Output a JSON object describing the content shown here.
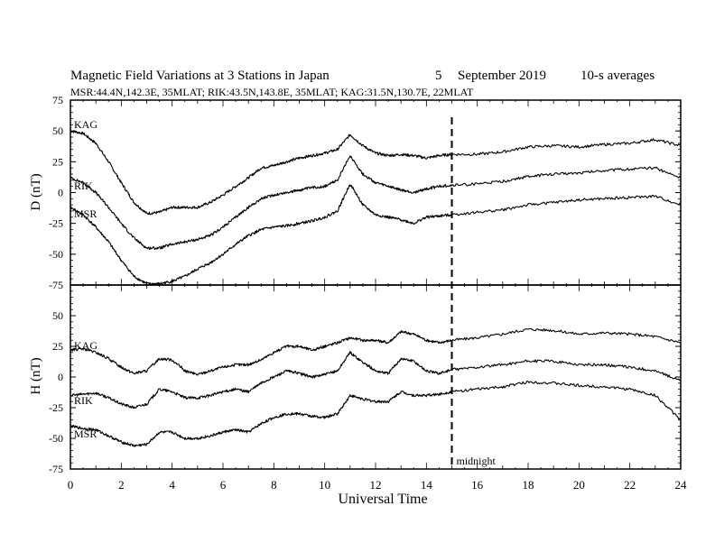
{
  "header": {
    "title": "Magnetic Field Variations at 3 Stations in Japan",
    "day": "5",
    "month": "September",
    "year": "2019",
    "averaging": "10-s averages",
    "stations": "MSR:44.4N,142.3E, 35MLAT;  RIK:43.5N,143.8E, 35MLAT;  KAG:31.5N,130.7E, 22MLAT"
  },
  "chart_data": [
    {
      "type": "line",
      "panel": "top",
      "ylabel": "D (nT)",
      "ylim": [
        -75,
        75
      ],
      "yticks": [
        "75",
        "50",
        "25",
        "0",
        "-25",
        "-50",
        "-75"
      ],
      "xlim": [
        0,
        24
      ],
      "series": [
        {
          "name": "KAG",
          "x": [
            0,
            0.5,
            1,
            1.5,
            2,
            2.5,
            3,
            3.5,
            4,
            4.5,
            5,
            5.5,
            6,
            6.5,
            7,
            7.5,
            8,
            8.5,
            9,
            9.5,
            10,
            10.5,
            11,
            11.5,
            12,
            12.5,
            13,
            13.5,
            14,
            14.5,
            15,
            16,
            17,
            18,
            19,
            20,
            21,
            22,
            23,
            24
          ],
          "y": [
            50,
            48,
            40,
            25,
            8,
            -8,
            -17,
            -16,
            -12,
            -12,
            -12,
            -8,
            -2,
            5,
            12,
            20,
            22,
            25,
            28,
            30,
            32,
            35,
            47,
            38,
            32,
            30,
            31,
            30,
            28,
            30,
            31,
            31,
            33,
            37,
            38,
            37,
            39,
            40,
            43,
            38
          ]
        },
        {
          "name": "RIK",
          "x": [
            0,
            0.5,
            1,
            1.5,
            2,
            2.5,
            3,
            3.5,
            4,
            4.5,
            5,
            5.5,
            6,
            6.5,
            7,
            7.5,
            8,
            8.5,
            9,
            9.5,
            10,
            10.5,
            11,
            11.5,
            12,
            12.5,
            13,
            13.5,
            14,
            14.5,
            15,
            16,
            17,
            18,
            19,
            20,
            21,
            22,
            23,
            24
          ],
          "y": [
            12,
            8,
            0,
            -12,
            -25,
            -37,
            -45,
            -45,
            -42,
            -40,
            -38,
            -35,
            -28,
            -20,
            -12,
            -5,
            -2,
            0,
            2,
            4,
            5,
            10,
            30,
            15,
            8,
            5,
            2,
            0,
            3,
            5,
            6,
            7,
            9,
            13,
            15,
            16,
            18,
            19,
            20,
            12
          ]
        },
        {
          "name": "MSR",
          "x": [
            0,
            0.5,
            1,
            1.5,
            2,
            2.5,
            3,
            3.5,
            4,
            4.5,
            5,
            5.5,
            6,
            6.5,
            7,
            7.5,
            8,
            8.5,
            9,
            9.5,
            10,
            10.5,
            11,
            11.5,
            12,
            12.5,
            13,
            13.5,
            14,
            14.5,
            15,
            16,
            17,
            18,
            19,
            20,
            21,
            22,
            23,
            24
          ],
          "y": [
            -12,
            -18,
            -28,
            -40,
            -55,
            -68,
            -74,
            -74,
            -72,
            -68,
            -62,
            -57,
            -50,
            -42,
            -35,
            -30,
            -28,
            -27,
            -25,
            -23,
            -20,
            -15,
            7,
            -10,
            -18,
            -20,
            -22,
            -25,
            -20,
            -19,
            -18,
            -16,
            -14,
            -10,
            -8,
            -6,
            -5,
            -4,
            -3,
            -10
          ]
        }
      ]
    },
    {
      "type": "line",
      "panel": "bottom",
      "ylabel": "H (nT)",
      "ylim": [
        -75,
        75
      ],
      "yticks": [
        "50",
        "25",
        "0",
        "-25",
        "-50",
        "-75"
      ],
      "xlabel": "Universal Time",
      "xlim": [
        0,
        24
      ],
      "xticks": [
        "0",
        "2",
        "4",
        "6",
        "8",
        "10",
        "12",
        "14",
        "16",
        "18",
        "20",
        "22",
        "24"
      ],
      "annotation": {
        "x": 15,
        "label": "midnight"
      },
      "series": [
        {
          "name": "KAG",
          "x": [
            0,
            0.5,
            1,
            1.5,
            2,
            2.5,
            3,
            3.5,
            4,
            4.5,
            5,
            5.5,
            6,
            6.5,
            7,
            7.5,
            8,
            8.5,
            9,
            9.5,
            10,
            10.5,
            11,
            11.5,
            12,
            12.5,
            13,
            13.5,
            14,
            14.5,
            15,
            16,
            17,
            18,
            19,
            20,
            21,
            22,
            23,
            24
          ],
          "y": [
            22,
            23,
            20,
            15,
            8,
            3,
            5,
            15,
            14,
            5,
            2,
            5,
            8,
            10,
            10,
            14,
            20,
            25,
            25,
            22,
            25,
            28,
            32,
            30,
            30,
            28,
            37,
            35,
            30,
            28,
            30,
            32,
            35,
            39,
            38,
            35,
            36,
            35,
            33,
            28
          ]
        },
        {
          "name": "RIK",
          "x": [
            0,
            0.5,
            1,
            1.5,
            2,
            2.5,
            3,
            3.5,
            4,
            4.5,
            5,
            5.5,
            6,
            6.5,
            7,
            7.5,
            8,
            8.5,
            9,
            9.5,
            10,
            10.5,
            11,
            11.5,
            12,
            12.5,
            13,
            13.5,
            14,
            14.5,
            15,
            16,
            17,
            18,
            19,
            20,
            21,
            22,
            23,
            24
          ],
          "y": [
            -15,
            -14,
            -13,
            -17,
            -22,
            -25,
            -22,
            -10,
            -12,
            -17,
            -17,
            -15,
            -12,
            -10,
            -12,
            -5,
            0,
            5,
            3,
            0,
            2,
            5,
            20,
            12,
            5,
            3,
            15,
            13,
            5,
            3,
            6,
            8,
            10,
            13,
            13,
            10,
            10,
            8,
            5,
            -3
          ]
        },
        {
          "name": "MSR",
          "x": [
            0,
            0.5,
            1,
            1.5,
            2,
            2.5,
            3,
            3.5,
            4,
            4.5,
            5,
            5.5,
            6,
            6.5,
            7,
            7.5,
            8,
            8.5,
            9,
            9.5,
            10,
            10.5,
            11,
            11.5,
            12,
            12.5,
            13,
            13.5,
            14,
            14.5,
            15,
            16,
            17,
            18,
            19,
            20,
            21,
            22,
            23,
            24
          ],
          "y": [
            -40,
            -42,
            -43,
            -48,
            -53,
            -56,
            -55,
            -45,
            -45,
            -50,
            -50,
            -48,
            -45,
            -43,
            -45,
            -38,
            -33,
            -30,
            -30,
            -32,
            -33,
            -30,
            -15,
            -18,
            -20,
            -20,
            -12,
            -15,
            -15,
            -14,
            -12,
            -10,
            -8,
            -4,
            -5,
            -7,
            -8,
            -10,
            -15,
            -35
          ]
        }
      ]
    }
  ]
}
